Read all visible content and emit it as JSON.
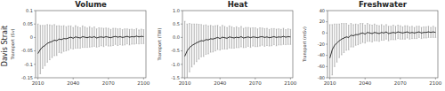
{
  "row_label": "Davis Strait",
  "chart_data": [
    {
      "type": "line",
      "title": "Volume",
      "y_label": "Transport (Sv)",
      "color": "#000000",
      "grid": false,
      "x": [
        2010,
        2012,
        2014,
        2016,
        2018,
        2020,
        2022,
        2024,
        2026,
        2028,
        2030,
        2032,
        2034,
        2036,
        2038,
        2040,
        2042,
        2044,
        2046,
        2048,
        2050,
        2052,
        2054,
        2056,
        2058,
        2060,
        2062,
        2064,
        2066,
        2068,
        2070,
        2072,
        2074,
        2076,
        2078,
        2080,
        2082,
        2084,
        2086,
        2088,
        2090,
        2092,
        2094,
        2096,
        2098,
        2100
      ],
      "values": [
        -0.06,
        -0.045,
        -0.035,
        -0.03,
        -0.022,
        -0.018,
        -0.015,
        -0.01,
        -0.012,
        -0.006,
        -0.008,
        -0.004,
        -0.005,
        -0.002,
        0.001,
        -0.003,
        0.002,
        0.0,
        -0.002,
        0.003,
        0.001,
        -0.001,
        0.002,
        0.0,
        0.003,
        -0.002,
        0.001,
        0.002,
        0.0,
        0.003,
        0.001,
        -0.001,
        0.002,
        0.004,
        0.001,
        0.003,
        0.0,
        0.002,
        0.004,
        0.001,
        0.003,
        0.002,
        0.005,
        0.002,
        0.004,
        0.003
      ],
      "errors": [
        0.11,
        0.09,
        0.08,
        0.075,
        0.07,
        0.065,
        0.06,
        0.058,
        0.055,
        0.05,
        0.05,
        0.048,
        0.045,
        0.045,
        0.042,
        0.04,
        0.042,
        0.04,
        0.038,
        0.04,
        0.038,
        0.036,
        0.038,
        0.035,
        0.036,
        0.034,
        0.035,
        0.033,
        0.034,
        0.032,
        0.033,
        0.031,
        0.032,
        0.03,
        0.031,
        0.03,
        0.029,
        0.03,
        0.028,
        0.029,
        0.028,
        0.027,
        0.028,
        0.026,
        0.027,
        0.026
      ],
      "xlim": [
        2008,
        2102
      ],
      "xticks": [
        2010,
        2040,
        2070,
        2100
      ],
      "ylim": [
        -0.15,
        0.1
      ],
      "yticks": [
        -0.15,
        -0.1,
        -0.05,
        0,
        0.05,
        0.1
      ]
    },
    {
      "type": "line",
      "title": "Heat",
      "y_label": "Transport (TW)",
      "color": "#000000",
      "grid": false,
      "x": [
        2010,
        2012,
        2014,
        2016,
        2018,
        2020,
        2022,
        2024,
        2026,
        2028,
        2030,
        2032,
        2034,
        2036,
        2038,
        2040,
        2042,
        2044,
        2046,
        2048,
        2050,
        2052,
        2054,
        2056,
        2058,
        2060,
        2062,
        2064,
        2066,
        2068,
        2070,
        2072,
        2074,
        2076,
        2078,
        2080,
        2082,
        2084,
        2086,
        2088,
        2090,
        2092,
        2094,
        2096,
        2098,
        2100
      ],
      "values": [
        -0.7,
        -0.5,
        -0.38,
        -0.3,
        -0.25,
        -0.2,
        -0.16,
        -0.12,
        -0.13,
        -0.08,
        -0.09,
        -0.05,
        -0.06,
        -0.03,
        0.0,
        -0.04,
        0.01,
        -0.01,
        -0.03,
        0.02,
        0.0,
        -0.02,
        0.01,
        -0.01,
        0.03,
        -0.02,
        0.0,
        0.02,
        -0.01,
        0.02,
        0.01,
        -0.01,
        0.02,
        0.03,
        0.0,
        0.02,
        -0.01,
        0.01,
        0.03,
        0.0,
        0.02,
        0.01,
        0.04,
        0.01,
        0.03,
        0.02
      ],
      "errors": [
        1.3,
        1.0,
        0.9,
        0.8,
        0.75,
        0.7,
        0.65,
        0.6,
        0.58,
        0.55,
        0.52,
        0.5,
        0.48,
        0.47,
        0.45,
        0.43,
        0.44,
        0.42,
        0.4,
        0.41,
        0.4,
        0.38,
        0.39,
        0.37,
        0.38,
        0.36,
        0.37,
        0.35,
        0.36,
        0.34,
        0.35,
        0.33,
        0.34,
        0.32,
        0.33,
        0.32,
        0.31,
        0.32,
        0.3,
        0.31,
        0.3,
        0.29,
        0.3,
        0.28,
        0.29,
        0.28
      ],
      "xlim": [
        2008,
        2102
      ],
      "xticks": [
        2010,
        2040,
        2070,
        2100
      ],
      "ylim": [
        -1.5,
        1.0
      ],
      "yticks": [
        -1.5,
        {
          "value": -1,
          "label": "-1.0"
        },
        -0.5,
        {
          "value": 0,
          "label": "0.0"
        },
        0.5,
        {
          "value": 1,
          "label": "1.0"
        }
      ]
    },
    {
      "type": "line",
      "title": "Freshwater",
      "y_label": "Transport (mSv)",
      "color": "#000000",
      "grid": false,
      "x": [
        2010,
        2012,
        2014,
        2016,
        2018,
        2020,
        2022,
        2024,
        2026,
        2028,
        2030,
        2032,
        2034,
        2036,
        2038,
        2040,
        2042,
        2044,
        2046,
        2048,
        2050,
        2052,
        2054,
        2056,
        2058,
        2060,
        2062,
        2064,
        2066,
        2068,
        2070,
        2072,
        2074,
        2076,
        2078,
        2080,
        2082,
        2084,
        2086,
        2088,
        2090,
        2092,
        2094,
        2096,
        2098,
        2100
      ],
      "values": [
        -45,
        -30,
        -22,
        -18,
        -14,
        -11,
        -9,
        -7,
        -8,
        -4,
        -5,
        -3,
        -3,
        -1,
        0,
        -2,
        1,
        0,
        -1,
        1,
        0,
        -1,
        1,
        0,
        2,
        -1,
        0,
        1,
        0,
        2,
        1,
        0,
        1,
        2,
        0,
        1,
        0,
        1,
        2,
        0,
        1,
        1,
        2,
        1,
        2,
        1
      ],
      "errors": [
        60,
        45,
        38,
        34,
        30,
        28,
        26,
        24,
        22,
        21,
        20,
        19,
        18,
        18,
        17,
        16,
        16,
        15,
        15,
        15,
        14,
        14,
        14,
        13,
        13,
        13,
        12,
        13,
        12,
        12,
        12,
        11,
        12,
        11,
        11,
        11,
        10,
        11,
        10,
        10,
        10,
        10,
        10,
        9,
        10,
        9
      ],
      "xlim": [
        2008,
        2102
      ],
      "xticks": [
        2010,
        2040,
        2070,
        2100
      ],
      "ylim": [
        -80,
        40
      ],
      "yticks": [
        -80,
        -60,
        -40,
        -20,
        0,
        20,
        40
      ]
    }
  ]
}
